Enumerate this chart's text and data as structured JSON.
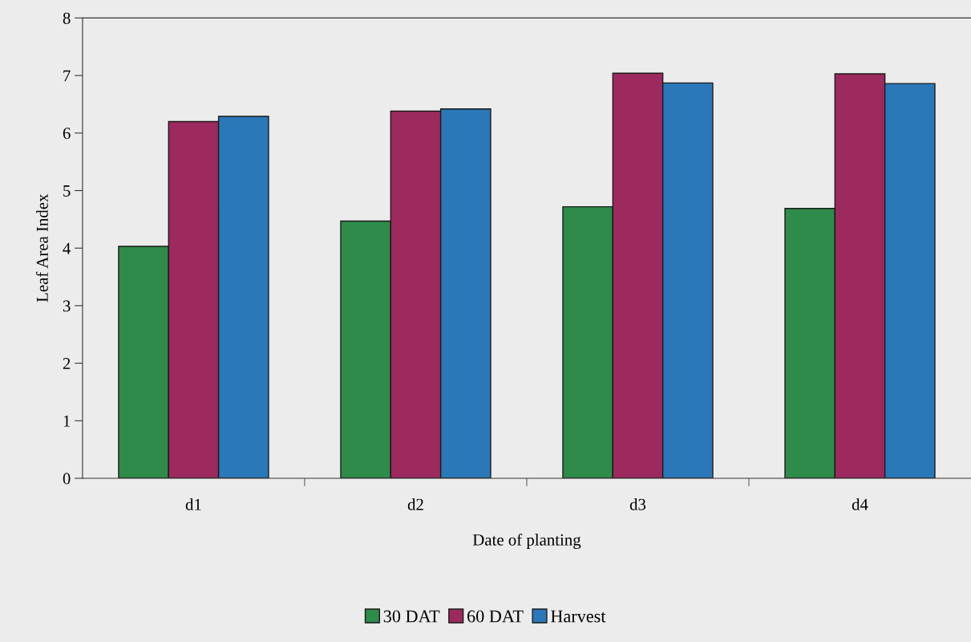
{
  "chart_data": {
    "type": "bar",
    "xlabel": "Date of planting",
    "ylabel": "Leaf Area Index",
    "categories": [
      "d1",
      "d2",
      "d3",
      "d4"
    ],
    "series": [
      {
        "name": "30 DAT",
        "color": "#2e8b4a",
        "values": [
          4.03,
          4.47,
          4.72,
          4.69
        ]
      },
      {
        "name": "60 DAT",
        "color": "#9c2a5e",
        "values": [
          6.2,
          6.38,
          7.04,
          7.03
        ]
      },
      {
        "name": "Harvest",
        "color": "#2a78b8",
        "values": [
          6.29,
          6.42,
          6.87,
          6.86
        ]
      }
    ],
    "ylim": [
      0,
      8
    ],
    "yticks": [
      0,
      1,
      2,
      3,
      4,
      5,
      6,
      7,
      8
    ],
    "grid": false,
    "legend": "bottom"
  }
}
